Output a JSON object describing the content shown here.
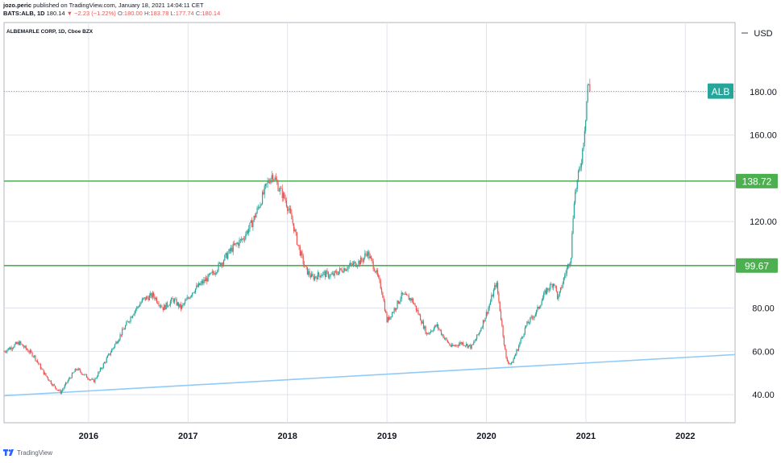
{
  "header": {
    "author": "jozo.peric",
    "published": "published on TradingView.com, January 18, 2021 14:04:11 CET",
    "ticker": "BATS:ALB, 1D",
    "last": "180.14",
    "change": "▼ −2.23 (−1.22%)",
    "o_label": "O:",
    "o_value": "180.00",
    "h_label": "H:",
    "h_value": "183.78",
    "l_label": "L:",
    "l_value": "177.74",
    "c_label": "C:",
    "c_value": "180.14",
    "symbol_title": "ALBEMARLE CORP, 1D, Cboe BZX"
  },
  "footer": {
    "brand": "TradingView"
  },
  "colors": {
    "up": "#26a69a",
    "down": "#ef5350",
    "support": "#4caf50",
    "trendline": "#90caf9",
    "grid": "#e0e3eb",
    "tag": "#26a69a"
  },
  "chart_data": {
    "type": "candlestick",
    "currency": "USD",
    "y_axis": {
      "ticks": [
        40,
        60,
        80,
        120,
        160,
        180
      ],
      "tick_labels": [
        "40.00",
        "60.00",
        "80.00",
        "120.00",
        "160.00",
        "180.00"
      ],
      "range": [
        27,
        212
      ]
    },
    "x_axis": {
      "tick_labels": [
        "2016",
        "2017",
        "2018",
        "2019",
        "2020",
        "2021",
        "2022"
      ],
      "range_years": [
        2015.15,
        2022.5
      ]
    },
    "price_tag": {
      "label": "ALB",
      "value": 180.14
    },
    "horizontal_levels": [
      {
        "value": 138.72,
        "label": "138.72"
      },
      {
        "value": 99.67,
        "label": "99.67"
      }
    ],
    "trendline": {
      "from": {
        "year": 2015.15,
        "price": 39.5
      },
      "to": {
        "year": 2022.5,
        "price": 58.5
      }
    },
    "price_path": [
      [
        2015.15,
        60
      ],
      [
        2015.3,
        64
      ],
      [
        2015.45,
        58
      ],
      [
        2015.55,
        50
      ],
      [
        2015.65,
        44
      ],
      [
        2015.72,
        41
      ],
      [
        2015.8,
        47
      ],
      [
        2015.88,
        52
      ],
      [
        2015.96,
        49
      ],
      [
        2016.05,
        46
      ],
      [
        2016.15,
        54
      ],
      [
        2016.25,
        62
      ],
      [
        2016.35,
        70
      ],
      [
        2016.45,
        78
      ],
      [
        2016.55,
        84
      ],
      [
        2016.65,
        86
      ],
      [
        2016.75,
        80
      ],
      [
        2016.85,
        84
      ],
      [
        2016.93,
        80
      ],
      [
        2017.05,
        88
      ],
      [
        2017.15,
        92
      ],
      [
        2017.25,
        96
      ],
      [
        2017.35,
        102
      ],
      [
        2017.45,
        108
      ],
      [
        2017.55,
        112
      ],
      [
        2017.65,
        120
      ],
      [
        2017.72,
        128
      ],
      [
        2017.8,
        138
      ],
      [
        2017.85,
        142
      ],
      [
        2017.92,
        135
      ],
      [
        2017.98,
        130
      ],
      [
        2018.05,
        120
      ],
      [
        2018.1,
        110
      ],
      [
        2018.18,
        98
      ],
      [
        2018.25,
        94
      ],
      [
        2018.35,
        96
      ],
      [
        2018.45,
        95
      ],
      [
        2018.55,
        98
      ],
      [
        2018.65,
        100
      ],
      [
        2018.75,
        102
      ],
      [
        2018.8,
        106
      ],
      [
        2018.88,
        98
      ],
      [
        2018.95,
        88
      ],
      [
        2019.0,
        74
      ],
      [
        2019.08,
        80
      ],
      [
        2019.15,
        86
      ],
      [
        2019.25,
        84
      ],
      [
        2019.33,
        76
      ],
      [
        2019.4,
        68
      ],
      [
        2019.5,
        72
      ],
      [
        2019.58,
        66
      ],
      [
        2019.65,
        62
      ],
      [
        2019.75,
        64
      ],
      [
        2019.85,
        62
      ],
      [
        2019.92,
        68
      ],
      [
        2020.02,
        80
      ],
      [
        2020.1,
        92
      ],
      [
        2020.15,
        74
      ],
      [
        2020.2,
        56
      ],
      [
        2020.25,
        54
      ],
      [
        2020.32,
        62
      ],
      [
        2020.4,
        72
      ],
      [
        2020.5,
        78
      ],
      [
        2020.6,
        88
      ],
      [
        2020.68,
        92
      ],
      [
        2020.72,
        84
      ],
      [
        2020.78,
        94
      ],
      [
        2020.85,
        104
      ],
      [
        2020.88,
        130
      ],
      [
        2020.92,
        140
      ],
      [
        2020.96,
        150
      ],
      [
        2021.0,
        170
      ],
      [
        2021.02,
        184
      ],
      [
        2021.04,
        180.14
      ]
    ]
  }
}
